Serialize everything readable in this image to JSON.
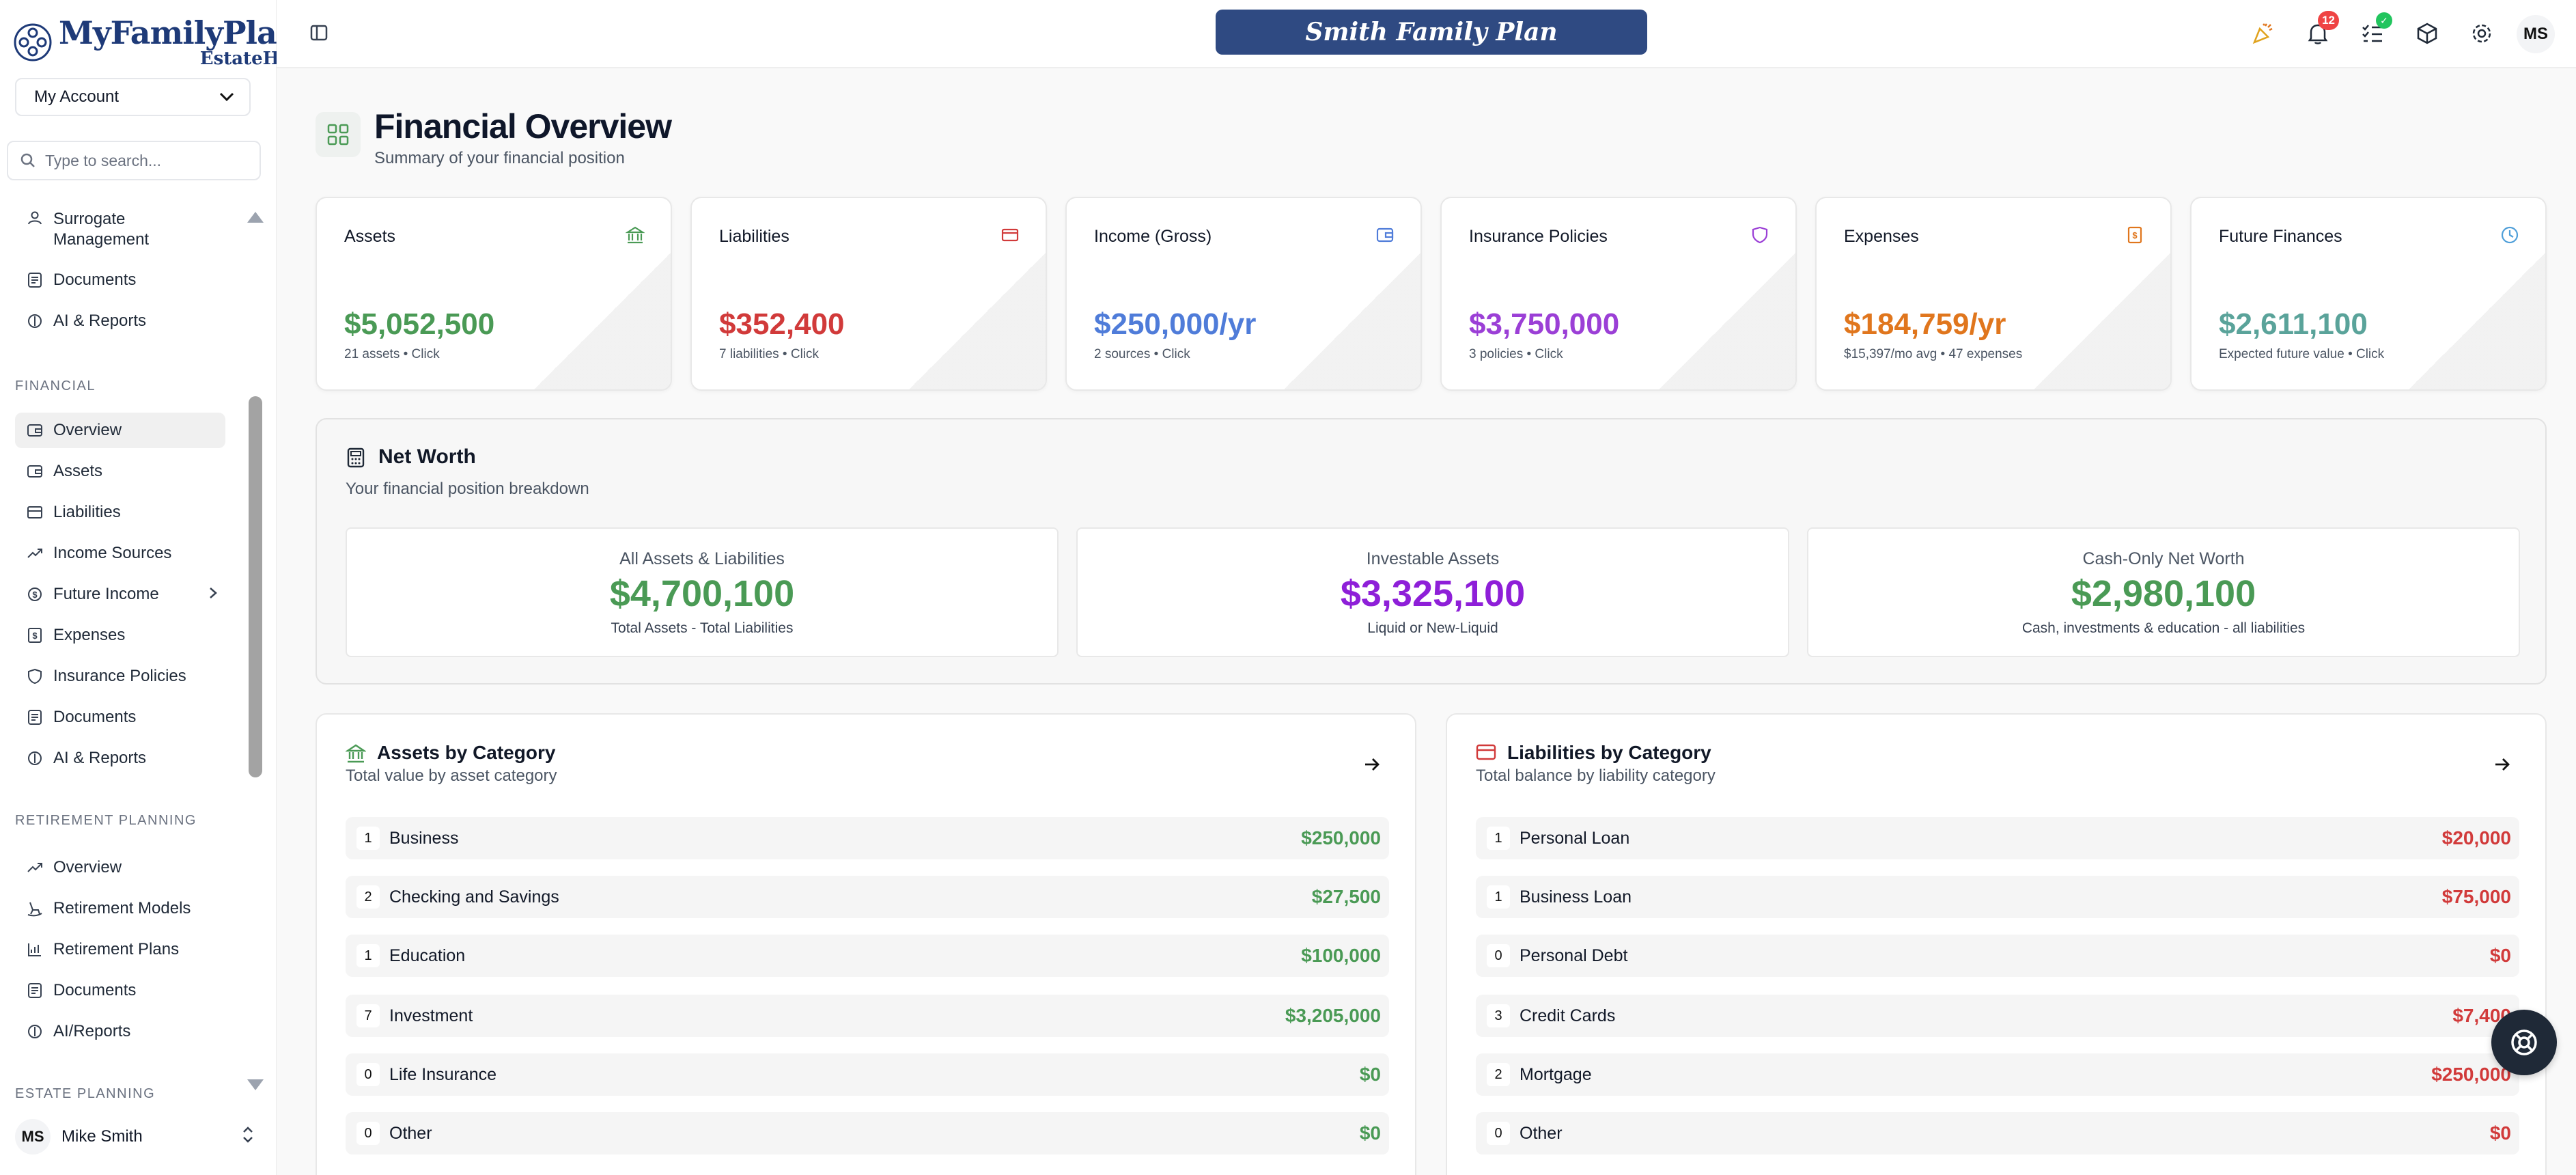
{
  "brand": {
    "name": "MyFamilyPlan",
    "trademark": "™",
    "sub": "EstateHub"
  },
  "sidebar": {
    "account_select": "My Account",
    "search_placeholder": "Type to search...",
    "top_items": [
      {
        "label": "Surrogate Management",
        "icon": "user-icon"
      },
      {
        "label": "Documents",
        "icon": "document-icon"
      },
      {
        "label": "AI & Reports",
        "icon": "ai-icon"
      }
    ],
    "financial_section": "FINANCIAL",
    "financial_items": [
      {
        "label": "Overview",
        "icon": "wallet-icon",
        "active": true
      },
      {
        "label": "Assets",
        "icon": "wallet-icon"
      },
      {
        "label": "Liabilities",
        "icon": "card-icon"
      },
      {
        "label": "Income Sources",
        "icon": "trend-icon"
      },
      {
        "label": "Future Income",
        "icon": "dollar-circle-icon"
      },
      {
        "label": "Expenses",
        "icon": "receipt-icon"
      },
      {
        "label": "Insurance Policies",
        "icon": "shield-icon"
      },
      {
        "label": "Documents",
        "icon": "document-icon"
      },
      {
        "label": "AI & Reports",
        "icon": "ai-icon"
      }
    ],
    "retirement_section": "RETIREMENT PLANNING",
    "retirement_items": [
      {
        "label": "Overview",
        "icon": "trend-icon"
      },
      {
        "label": "Retirement Models",
        "icon": "rocking-chair-icon"
      },
      {
        "label": "Retirement Plans",
        "icon": "chart-icon"
      },
      {
        "label": "Documents",
        "icon": "document-icon"
      },
      {
        "label": "AI/Reports",
        "icon": "ai-icon"
      }
    ],
    "estate_section": "ESTATE PLANNING",
    "user": {
      "initials": "MS",
      "name": "Mike Smith"
    }
  },
  "topbar": {
    "plan_title": "Smith Family Plan",
    "notification_count": "12",
    "avatar_initials": "MS"
  },
  "page": {
    "title": "Financial Overview",
    "subtitle": "Summary of your financial position"
  },
  "stats": [
    {
      "label": "Assets",
      "value": "$5,052,500",
      "note": "21 assets • Click",
      "color": "#4a9a55"
    },
    {
      "label": "Liabilities",
      "value": "$352,400",
      "note": "7 liabilities • Click",
      "color": "#d13a3a"
    },
    {
      "label": "Income (Gross)",
      "value": "$250,000/yr",
      "note": "2 sources • Click",
      "color": "#4f7cd9"
    },
    {
      "label": "Insurance Policies",
      "value": "$3,750,000",
      "note": "3 policies • Click",
      "color": "#9b3fd6"
    },
    {
      "label": "Expenses",
      "value": "$184,759/yr",
      "note": "$15,397/mo avg • 47 expenses",
      "color": "#e0761d"
    },
    {
      "label": "Future Finances",
      "value": "$2,611,100",
      "note": "Expected future value • Click",
      "color": "#5aa39a"
    }
  ],
  "networth": {
    "title": "Net Worth",
    "subtitle": "Your financial position breakdown",
    "boxes": [
      {
        "label": "All Assets & Liabilities",
        "value": "$4,700,100",
        "note": "Total Assets - Total Liabilities",
        "color": "#4a9a55"
      },
      {
        "label": "Investable Assets",
        "value": "$3,325,100",
        "note": "Liquid or New-Liquid",
        "color": "#8e1fd8"
      },
      {
        "label": "Cash-Only Net Worth",
        "value": "$2,980,100",
        "note": "Cash, investments & education - all liabilities",
        "color": "#4a9a55"
      }
    ]
  },
  "assets_by_category": {
    "title": "Assets by Category",
    "subtitle": "Total value by asset category",
    "rows": [
      {
        "count": "1",
        "name": "Business",
        "amount": "$250,000"
      },
      {
        "count": "2",
        "name": "Checking and Savings",
        "amount": "$27,500"
      },
      {
        "count": "1",
        "name": "Education",
        "amount": "$100,000"
      },
      {
        "count": "7",
        "name": "Investment",
        "amount": "$3,205,000"
      },
      {
        "count": "0",
        "name": "Life Insurance",
        "amount": "$0"
      },
      {
        "count": "0",
        "name": "Other",
        "amount": "$0"
      }
    ]
  },
  "liabilities_by_category": {
    "title": "Liabilities by Category",
    "subtitle": "Total balance by liability category",
    "rows": [
      {
        "count": "1",
        "name": "Personal Loan",
        "amount": "$20,000"
      },
      {
        "count": "1",
        "name": "Business Loan",
        "amount": "$75,000"
      },
      {
        "count": "0",
        "name": "Personal Debt",
        "amount": "$0"
      },
      {
        "count": "3",
        "name": "Credit Cards",
        "amount": "$7,400"
      },
      {
        "count": "2",
        "name": "Mortgage",
        "amount": "$250,000"
      },
      {
        "count": "0",
        "name": "Other",
        "amount": "$0"
      }
    ]
  },
  "colors": {
    "green": "#4a9a55",
    "red": "#d13a3a",
    "navy": "#2f4a82"
  }
}
